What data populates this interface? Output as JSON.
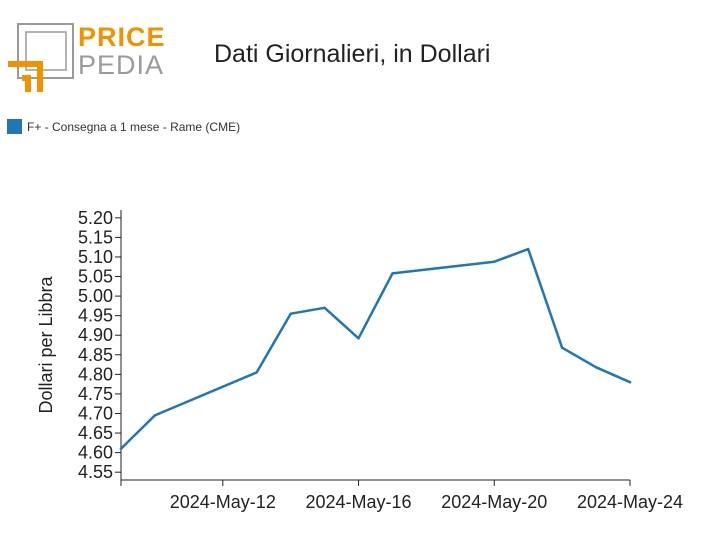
{
  "header": {
    "logo_top": "PRICE",
    "logo_bottom": "PEDIA",
    "title": "Dati Giornalieri, in Dollari"
  },
  "colors": {
    "logo_orange": "#f29200",
    "logo_gray": "#9a9a9a",
    "series": "#1f77b4"
  },
  "chart_data": {
    "type": "line",
    "title": "Dati Giornalieri, in Dollari",
    "xlabel": "",
    "ylabel": "Dollari per Libbra",
    "legend_position": "top-left",
    "ylim": [
      4.53,
      5.22
    ],
    "xlim": [
      0,
      15
    ],
    "y_ticks": [
      "4.55",
      "4.60",
      "4.65",
      "4.70",
      "4.75",
      "4.80",
      "4.85",
      "4.90",
      "4.95",
      "5.00",
      "5.05",
      "5.10",
      "5.15",
      "5.20"
    ],
    "x_ticks": [
      {
        "x": 0,
        "label": ""
      },
      {
        "x": 3,
        "label": "2024-May-12"
      },
      {
        "x": 7,
        "label": "2024-May-16"
      },
      {
        "x": 11,
        "label": "2024-May-20"
      },
      {
        "x": 15,
        "label": "2024-May-24"
      }
    ],
    "series": [
      {
        "name": "F+ - Consegna a 1 mese - Rame (CME)",
        "x": [
          0,
          1,
          4,
          5,
          6,
          7,
          8,
          11,
          12,
          13,
          14,
          15
        ],
        "values": [
          4.61,
          4.695,
          4.805,
          4.955,
          4.97,
          4.892,
          5.058,
          5.088,
          5.12,
          4.868,
          4.818,
          4.78
        ]
      }
    ]
  }
}
